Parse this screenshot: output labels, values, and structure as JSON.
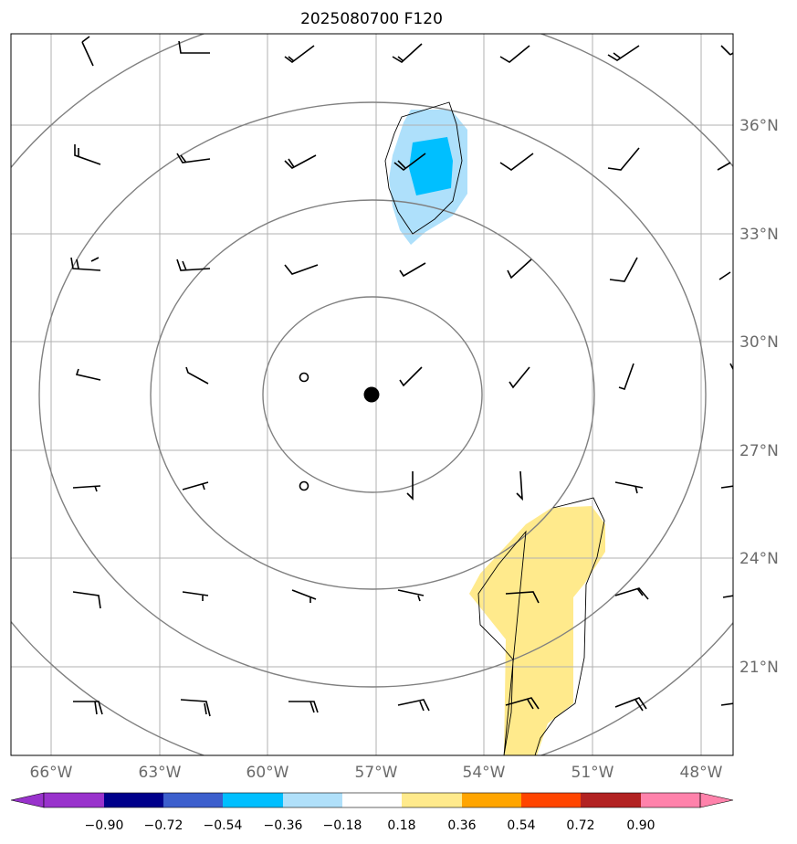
{
  "title": "2025080700 F120",
  "colors": {
    "ring": "#808080",
    "grid": "#b0b0b0",
    "tick_text": "#6b6b6b",
    "positive_anomaly": "#ffea8c",
    "negative_light": "#aee0fb",
    "negative_mid": "#00bfff",
    "center_marker": "#000000"
  },
  "axes": {
    "lon_ticks": [
      "66°W",
      "63°W",
      "60°W",
      "57°W",
      "54°W",
      "51°W",
      "48°W"
    ],
    "lat_ticks": [
      "36°N",
      "33°N",
      "30°N",
      "27°N",
      "24°N",
      "21°N"
    ]
  },
  "colorbar": {
    "labels": [
      "−0.90",
      "−0.72",
      "−0.54",
      "−0.36",
      "−0.18",
      "0.18",
      "0.36",
      "0.54",
      "0.72",
      "0.90"
    ],
    "colors": [
      "#9932cc",
      "#00008b",
      "#3c5fcd",
      "#00bfff",
      "#b0e0fa",
      "#ffffff",
      "#ffea8c",
      "#ffa500",
      "#ff4500",
      "#b22222",
      "#ff82ab"
    ],
    "extend": "both"
  }
}
